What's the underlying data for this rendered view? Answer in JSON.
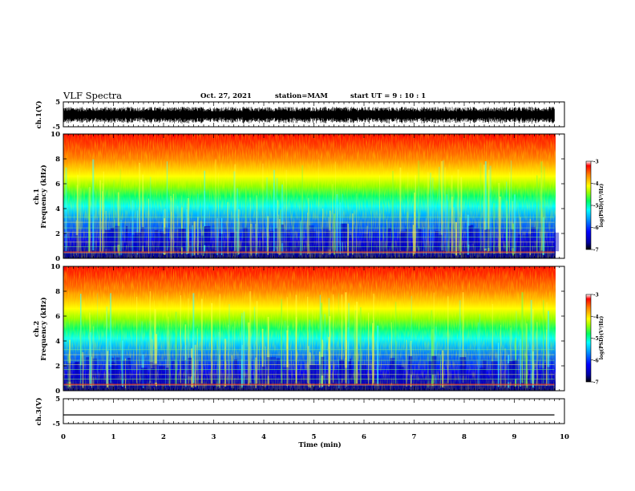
{
  "header": {
    "title": "VLF Spectra",
    "date": "Oct. 27, 2021",
    "station": "station=MAM",
    "start": "start UT =  9 : 10 : 1"
  },
  "colors": {
    "spectrum": [
      "#0000a0",
      "#0000ff",
      "#0080ff",
      "#00ffff",
      "#00ff80",
      "#80ff00",
      "#ffff00",
      "#ff8000",
      "#ff0000"
    ],
    "waveform": "#000000"
  },
  "chart_data": [
    {
      "type": "line",
      "id": "ch1-waveform",
      "ylabel": "ch.1(V)",
      "ylim": [
        -5,
        5
      ],
      "yticks": [
        "5",
        "-5"
      ],
      "description_series": "dense voltage waveform, values mostly within about -3 to 3 V",
      "xlim": [
        0,
        10
      ]
    },
    {
      "type": "heatmap",
      "id": "ch1-spectrogram",
      "ylabel_line1": "ch.1",
      "ylabel_line2": "Frequency (kHz)",
      "ylim": [
        0,
        10
      ],
      "yticks": [
        "0",
        "2",
        "4",
        "6",
        "8",
        "10"
      ],
      "xlim": [
        0,
        10
      ],
      "data_extent_min": 9.8,
      "colorbar": {
        "label": "log(PSD)(V²/Hz)",
        "range": [
          -7,
          -3
        ],
        "ticks": [
          "-3",
          "-4",
          "-5",
          "-6",
          "-7"
        ]
      }
    },
    {
      "type": "heatmap",
      "id": "ch2-spectrogram",
      "ylabel_line1": "ch.2",
      "ylabel_line2": "Frequency (kHz)",
      "ylim": [
        0,
        10
      ],
      "yticks": [
        "0",
        "2",
        "4",
        "6",
        "8",
        "10"
      ],
      "xlim": [
        0,
        10
      ],
      "data_extent_min": 9.8,
      "colorbar": {
        "label": "log(PSD)(V²/Hz)",
        "range": [
          -7,
          -3
        ],
        "ticks": [
          "-3",
          "-4",
          "-5",
          "-6",
          "-7"
        ]
      }
    },
    {
      "type": "line",
      "id": "ch3-waveform",
      "ylabel": "ch.3(V)",
      "ylim": [
        -5,
        5
      ],
      "yticks": [
        "5",
        "-5"
      ],
      "x": [
        0,
        9.8
      ],
      "values": [
        -1.5,
        -1.5
      ],
      "xlim": [
        0,
        10
      ],
      "xlabel": "Time (min)",
      "xticks": [
        "0",
        "1",
        "2",
        "3",
        "4",
        "5",
        "6",
        "7",
        "8",
        "9",
        "10"
      ]
    }
  ]
}
